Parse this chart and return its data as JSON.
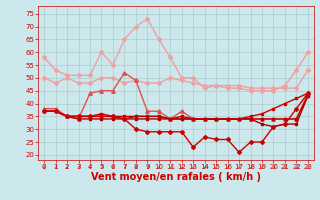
{
  "background_color": "#cce8ec",
  "grid_color": "#aacccc",
  "xlabel": "Vent moyen/en rafales ( km/h )",
  "xlabel_color": "#cc0000",
  "xlabel_fontsize": 7,
  "tick_color": "#cc0000",
  "tick_fontsize": 5,
  "ylim": [
    18,
    78
  ],
  "yticks": [
    20,
    25,
    30,
    35,
    40,
    45,
    50,
    55,
    60,
    65,
    70,
    75
  ],
  "xlim": [
    -0.5,
    23.5
  ],
  "xticks": [
    0,
    1,
    2,
    3,
    4,
    5,
    6,
    7,
    8,
    9,
    10,
    11,
    12,
    13,
    14,
    15,
    16,
    17,
    18,
    19,
    20,
    21,
    22,
    23
  ],
  "series": [
    {
      "name": "light_pink_upper",
      "color": "#f0a0a0",
      "lw": 1.0,
      "marker": "D",
      "markersize": 2.0,
      "y": [
        58,
        53,
        51,
        51,
        51,
        60,
        55,
        65,
        70,
        73,
        65,
        58,
        50,
        50,
        46,
        47,
        46,
        46,
        45,
        45,
        45,
        47,
        53,
        60
      ]
    },
    {
      "name": "light_pink_lower",
      "color": "#f0a0a0",
      "lw": 1.0,
      "marker": "D",
      "markersize": 2.0,
      "y": [
        50,
        48,
        50,
        48,
        48,
        50,
        50,
        48,
        49,
        48,
        48,
        50,
        49,
        48,
        47,
        47,
        47,
        47,
        46,
        46,
        46,
        46,
        46,
        53
      ]
    },
    {
      "name": "medium_red_upper",
      "color": "#e05050",
      "lw": 1.0,
      "marker": "^",
      "markersize": 2.5,
      "y": [
        38,
        38,
        35,
        34,
        44,
        45,
        45,
        52,
        49,
        37,
        37,
        34,
        37,
        34,
        34,
        34,
        34,
        34,
        34,
        34,
        34,
        34,
        34,
        44
      ]
    },
    {
      "name": "dark_red_ascending",
      "color": "#cc0000",
      "lw": 1.0,
      "marker": "s",
      "markersize": 1.8,
      "y": [
        37,
        37,
        35,
        35,
        35,
        36,
        35,
        35,
        35,
        35,
        35,
        34,
        34,
        34,
        34,
        34,
        34,
        34,
        35,
        36,
        38,
        40,
        42,
        44
      ]
    },
    {
      "name": "dark_red_flat1",
      "color": "#aa0000",
      "lw": 1.0,
      "marker": "s",
      "markersize": 1.8,
      "y": [
        37,
        37,
        35,
        34,
        34,
        34,
        34,
        34,
        34,
        34,
        34,
        34,
        34,
        34,
        34,
        34,
        34,
        34,
        34,
        32,
        31,
        32,
        32,
        43
      ]
    },
    {
      "name": "dark_red_flat2",
      "color": "#bb0000",
      "lw": 1.0,
      "marker": "s",
      "markersize": 1.8,
      "y": [
        37,
        37,
        35,
        35,
        35,
        35,
        35,
        34,
        35,
        35,
        35,
        34,
        35,
        34,
        34,
        34,
        34,
        34,
        34,
        34,
        34,
        34,
        34,
        43
      ]
    },
    {
      "name": "dark_red_descending",
      "color": "#cc0000",
      "lw": 1.0,
      "marker": "D",
      "markersize": 2.0,
      "y": [
        37,
        37,
        35,
        35,
        35,
        35,
        35,
        34,
        30,
        29,
        29,
        29,
        29,
        23,
        27,
        26,
        26,
        21,
        25,
        25,
        31,
        32,
        38,
        44
      ]
    }
  ]
}
